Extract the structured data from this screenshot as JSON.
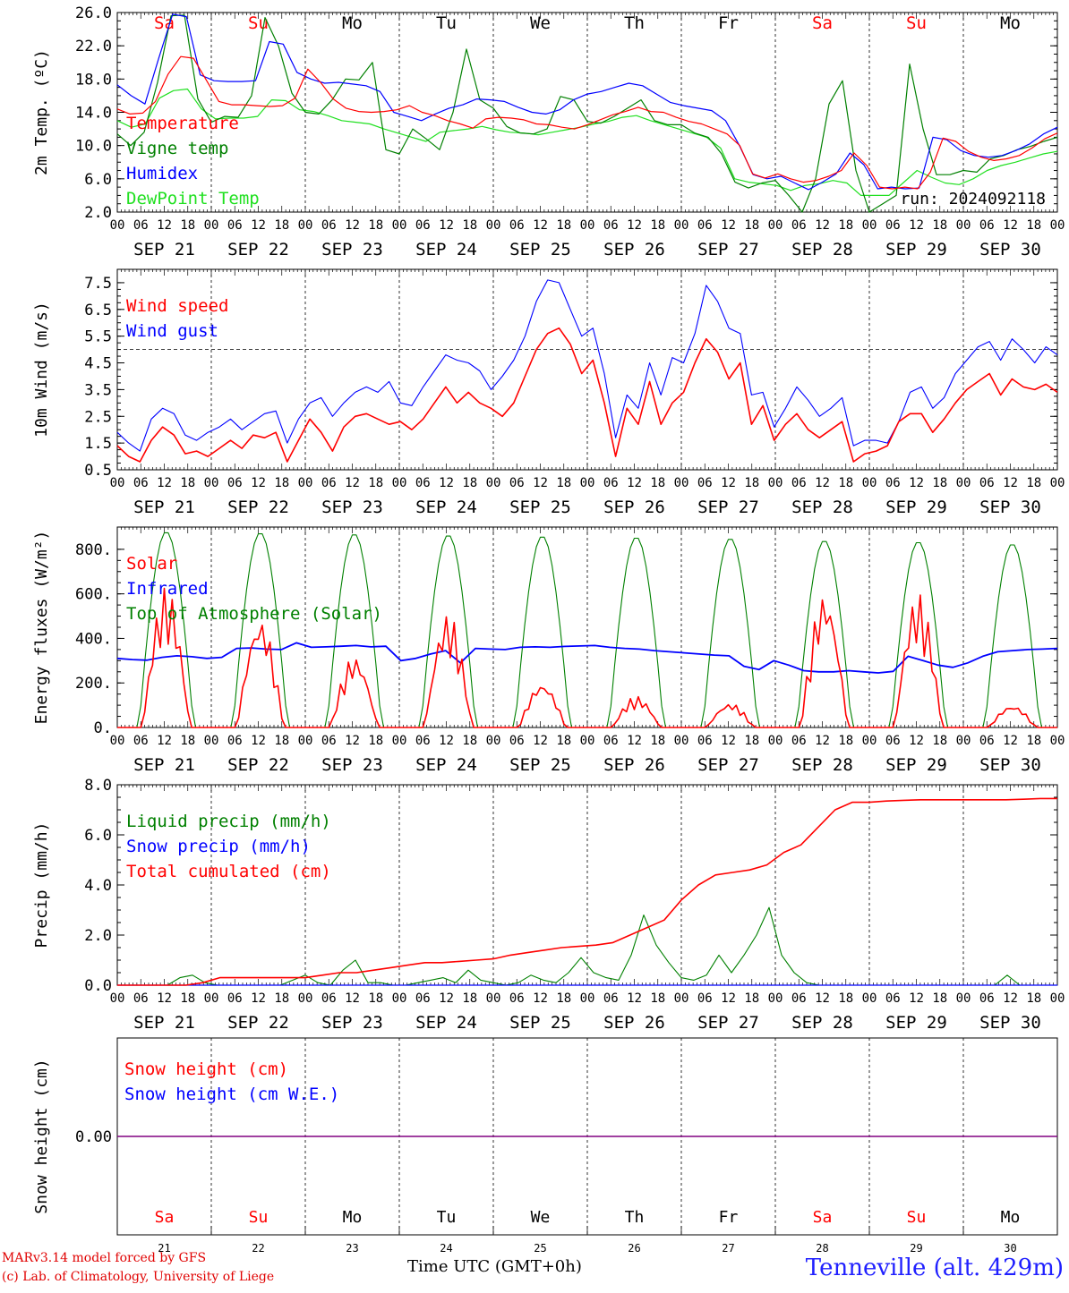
{
  "days": {
    "abbrev": [
      "Sa",
      "Su",
      "Mo",
      "Tu",
      "We",
      "Th",
      "Fr",
      "Sa",
      "Su",
      "Mo"
    ],
    "weekend": [
      true,
      true,
      false,
      false,
      false,
      false,
      false,
      true,
      true,
      false
    ],
    "dates": [
      "SEP 21",
      "SEP 22",
      "SEP 23",
      "SEP 24",
      "SEP 25",
      "SEP 26",
      "SEP 27",
      "SEP 28",
      "SEP 29",
      "SEP 30"
    ],
    "numbers": [
      "21",
      "22",
      "23",
      "24",
      "25",
      "26",
      "27",
      "28",
      "29",
      "30"
    ],
    "hour_labels": [
      "00",
      "06",
      "12",
      "18"
    ],
    "final_hour": "00"
  },
  "colors": {
    "red": "#ff0000",
    "green": "#008000",
    "blue": "#0000ff",
    "lightgreen": "#20e020",
    "purple": "#800080",
    "weekend": "#ff0000",
    "weekday": "#000000"
  },
  "chart_data": [
    {
      "id": "temperature",
      "type": "line",
      "ylabel": "2m Temp. (ºC)",
      "ylim": [
        2.0,
        26.0
      ],
      "yticks": [
        "2.0",
        "6.0",
        "10.0",
        "14.0",
        "18.0",
        "22.0",
        "26.0"
      ],
      "annotation": "run: 2024092118",
      "series": [
        {
          "name": "Temperature",
          "color": "#ff0000",
          "values": [
            14.4,
            13.8,
            13.9,
            15.3,
            18.6,
            20.7,
            20.5,
            17.9,
            15.3,
            14.9,
            14.9,
            14.8,
            14.7,
            14.8,
            15.7,
            19.2,
            17.6,
            15.6,
            14.5,
            14.1,
            14.0,
            14.1,
            14.3,
            14.8,
            14.0,
            13.6,
            13.0,
            12.6,
            12.1,
            13.2,
            13.4,
            13.3,
            13.1,
            12.6,
            12.5,
            12.2,
            12.0,
            12.5,
            13.1,
            13.7,
            14.1,
            14.6,
            14.1,
            14.0,
            13.4,
            12.9,
            12.6,
            12.0,
            11.4,
            10.0,
            6.6,
            6.1,
            6.6,
            6.0,
            5.6,
            5.8,
            6.3,
            7.0,
            9.1,
            7.6,
            5.0,
            4.8,
            5.0,
            4.8,
            6.8,
            10.9,
            10.5,
            9.3,
            8.6,
            8.2,
            8.4,
            8.8,
            9.7,
            10.8,
            11.5
          ]
        },
        {
          "name": "Vigne temp",
          "color": "#008000",
          "values": [
            11.4,
            10.0,
            11.6,
            17.6,
            25.6,
            25.7,
            15.6,
            12.8,
            13.5,
            13.4,
            16.0,
            25.4,
            22.0,
            16.3,
            14.0,
            13.8,
            15.5,
            18.0,
            17.9,
            20.0,
            9.5,
            9.0,
            12.0,
            10.8,
            9.5,
            14.0,
            21.6,
            15.5,
            14.5,
            12.3,
            11.5,
            11.4,
            12.0,
            15.9,
            15.5,
            12.9,
            12.7,
            13.5,
            14.5,
            15.5,
            13.0,
            12.5,
            12.5,
            11.5,
            11.0,
            9.0,
            5.6,
            4.9,
            5.5,
            5.8,
            4.0,
            2.0,
            6.0,
            15.0,
            17.8,
            7.0,
            2.0,
            3.0,
            4.0,
            19.8,
            12.0,
            6.5,
            6.5,
            7.0,
            6.8,
            8.4,
            8.8,
            9.5,
            9.9,
            10.5,
            11.0
          ]
        },
        {
          "name": "Humidex",
          "color": "#0000ff",
          "values": [
            17.3,
            16.0,
            15.0,
            20.5,
            25.8,
            25.5,
            18.5,
            17.8,
            17.7,
            17.7,
            17.8,
            22.5,
            22.2,
            18.8,
            18.0,
            17.5,
            17.6,
            17.4,
            17.2,
            16.5,
            14.0,
            13.5,
            13.0,
            13.8,
            14.5,
            14.9,
            15.6,
            15.5,
            15.3,
            14.6,
            14.0,
            13.8,
            14.3,
            15.5,
            16.2,
            16.5,
            17.0,
            17.5,
            17.2,
            16.2,
            15.2,
            14.8,
            14.5,
            14.2,
            13.0,
            10.0,
            6.5,
            6.0,
            6.3,
            5.5,
            4.7,
            5.6,
            6.6,
            9.1,
            7.7,
            4.8,
            5.0,
            4.8,
            4.9,
            11.0,
            10.7,
            9.4,
            8.8,
            8.6,
            8.8,
            9.4,
            10.2,
            11.4,
            12.2
          ]
        },
        {
          "name": "DewPoint Temp",
          "color": "#20e020",
          "values": [
            13.0,
            12.2,
            12.6,
            15.7,
            16.6,
            16.8,
            14.4,
            13.2,
            13.3,
            13.3,
            13.5,
            15.5,
            15.4,
            14.3,
            14.1,
            13.6,
            13.0,
            12.8,
            12.6,
            12.0,
            11.5,
            11.0,
            10.5,
            11.6,
            11.8,
            12.0,
            12.3,
            11.9,
            11.6,
            11.5,
            11.3,
            11.6,
            11.9,
            12.2,
            12.6,
            12.9,
            13.4,
            13.6,
            13.0,
            12.5,
            12.0,
            11.5,
            11.0,
            9.7,
            6.0,
            5.6,
            5.4,
            5.2,
            4.6,
            5.2,
            5.4,
            5.8,
            5.5,
            4.0,
            4.0,
            4.0,
            5.5,
            7.0,
            6.2,
            5.5,
            5.3,
            6.0,
            7.0,
            7.6,
            8.0,
            8.5,
            9.0,
            9.3
          ]
        }
      ]
    },
    {
      "id": "wind",
      "type": "line",
      "ylabel": "10m Wind (m/s)",
      "ylim": [
        0.5,
        8.0
      ],
      "yticks": [
        "0.5",
        "1.5",
        "2.5",
        "3.5",
        "4.5",
        "5.5",
        "6.5",
        "7.5"
      ],
      "reference_line": 5.0,
      "series": [
        {
          "name": "Wind speed",
          "color": "#ff0000",
          "values": [
            1.4,
            1.0,
            0.8,
            1.6,
            2.1,
            1.8,
            1.1,
            1.2,
            1.0,
            1.3,
            1.6,
            1.3,
            1.8,
            1.7,
            1.9,
            0.8,
            1.6,
            2.4,
            1.9,
            1.2,
            2.1,
            2.5,
            2.6,
            2.4,
            2.2,
            2.3,
            2.0,
            2.4,
            3.0,
            3.6,
            3.0,
            3.4,
            3.0,
            2.8,
            2.5,
            3.0,
            4.0,
            5.0,
            5.6,
            5.8,
            5.2,
            4.1,
            4.6,
            3.0,
            1.0,
            2.8,
            2.2,
            3.8,
            2.2,
            3.0,
            3.4,
            4.5,
            5.4,
            4.9,
            3.9,
            4.5,
            2.2,
            2.9,
            1.6,
            2.2,
            2.6,
            2.0,
            1.7,
            2.0,
            2.3,
            0.8,
            1.1,
            1.2,
            1.4,
            2.3,
            2.6,
            2.6,
            1.9,
            2.4,
            3.0,
            3.5,
            3.8,
            4.1,
            3.3,
            3.9,
            3.6,
            3.5,
            3.7,
            3.4
          ]
        },
        {
          "name": "Wind gust",
          "color": "#0000ff",
          "values": [
            1.9,
            1.5,
            1.2,
            2.4,
            2.8,
            2.6,
            1.8,
            1.6,
            1.9,
            2.1,
            2.4,
            2.0,
            2.3,
            2.6,
            2.7,
            1.5,
            2.4,
            3.0,
            3.2,
            2.5,
            3.0,
            3.4,
            3.6,
            3.4,
            3.8,
            3.0,
            2.9,
            3.6,
            4.2,
            4.8,
            4.6,
            4.5,
            4.2,
            3.5,
            4.0,
            4.6,
            5.5,
            6.8,
            7.6,
            7.5,
            6.5,
            5.5,
            5.8,
            4.1,
            1.7,
            3.3,
            2.8,
            4.5,
            3.3,
            4.7,
            4.5,
            5.6,
            7.4,
            6.8,
            5.8,
            5.6,
            3.3,
            3.4,
            2.1,
            2.8,
            3.6,
            3.1,
            2.5,
            2.8,
            3.2,
            1.4,
            1.6,
            1.6,
            1.5,
            2.3,
            3.4,
            3.6,
            2.8,
            3.2,
            4.1,
            4.6,
            5.1,
            5.3,
            4.6,
            5.4,
            5.0,
            4.5,
            5.1,
            4.8
          ]
        }
      ]
    },
    {
      "id": "energy",
      "type": "line",
      "ylabel": "Energy fluxes (W/m²)",
      "ylim": [
        0,
        900
      ],
      "yticks": [
        "0.",
        "200.",
        "400.",
        "600.",
        "800."
      ],
      "series": [
        {
          "name": "Solar",
          "color": "#ff0000",
          "daily_peaks_wm2": [
            630,
            490,
            320,
            510,
            200,
            140,
            110,
            600,
            600,
            100
          ]
        },
        {
          "name": "Infrared",
          "color": "#0000ff",
          "values": [
            310,
            305,
            302,
            315,
            322,
            318,
            310,
            315,
            355,
            357,
            352,
            350,
            380,
            360,
            362,
            365,
            368,
            362,
            365,
            300,
            310,
            330,
            345,
            290,
            355,
            352,
            350,
            360,
            362,
            360,
            364,
            366,
            368,
            360,
            355,
            352,
            345,
            340,
            335,
            330,
            325,
            322,
            275,
            260,
            300,
            280,
            255,
            250,
            250,
            255,
            250,
            245,
            252,
            320,
            300,
            280,
            270,
            290,
            320,
            340,
            345,
            350,
            352,
            355
          ]
        },
        {
          "name": "Top of Atmosphere (Solar)",
          "color": "#008000",
          "daily_peaks_wm2": [
            880,
            875,
            870,
            865,
            860,
            855,
            850,
            840,
            835,
            825
          ]
        }
      ]
    },
    {
      "id": "precip",
      "type": "line",
      "ylabel": "Precip (mm/h)",
      "ylim": [
        0,
        8.0
      ],
      "yticks": [
        "0.0",
        "2.0",
        "4.0",
        "6.0",
        "8.0"
      ],
      "series": [
        {
          "name": "Liquid precip (mm/h)",
          "color": "#008000",
          "values": [
            0,
            0,
            0,
            0,
            0,
            0.3,
            0.4,
            0.1,
            0,
            0,
            0,
            0,
            0,
            0,
            0.2,
            0.4,
            0.1,
            0,
            0.6,
            1.0,
            0.1,
            0.1,
            0,
            0,
            0.1,
            0.2,
            0.3,
            0.1,
            0.6,
            0.2,
            0.1,
            0,
            0.1,
            0.4,
            0.2,
            0.1,
            0.5,
            1.1,
            0.5,
            0.3,
            0.2,
            1.2,
            2.8,
            1.6,
            0.9,
            0.3,
            0.2,
            0.4,
            1.2,
            0.5,
            1.2,
            2.0,
            3.1,
            1.2,
            0.5,
            0.1,
            0,
            0,
            0,
            0,
            0,
            0,
            0,
            0,
            0,
            0,
            0,
            0,
            0,
            0,
            0,
            0.4,
            0,
            0,
            0,
            0
          ]
        },
        {
          "name": "Snow precip (mm/h)",
          "color": "#0000ff",
          "values": [
            0,
            0
          ]
        },
        {
          "name": "Total cumulated (cm)",
          "color": "#ff0000",
          "values": [
            0,
            0,
            0,
            0,
            0,
            0.1,
            0.3,
            0.3,
            0.3,
            0.3,
            0.3,
            0.3,
            0.4,
            0.5,
            0.5,
            0.6,
            0.7,
            0.8,
            0.9,
            0.9,
            0.95,
            1.0,
            1.05,
            1.2,
            1.3,
            1.4,
            1.5,
            1.55,
            1.6,
            1.7,
            2.0,
            2.3,
            2.6,
            3.4,
            4.0,
            4.4,
            4.5,
            4.6,
            4.8,
            5.3,
            5.6,
            6.3,
            7.0,
            7.3,
            7.3,
            7.35,
            7.38,
            7.4,
            7.4,
            7.4,
            7.4,
            7.4,
            7.4,
            7.42,
            7.45,
            7.45
          ]
        }
      ]
    },
    {
      "id": "snow",
      "type": "line",
      "ylabel": "Snow height (cm)",
      "ylim": [
        -1,
        1
      ],
      "yticks": [
        "0.00"
      ],
      "series": [
        {
          "name": "Snow height (cm)",
          "color": "#ff0000",
          "values": [
            0,
            0
          ]
        },
        {
          "name": "Snow height (cm W.E.)",
          "color": "#0000ff",
          "values": [
            0,
            0
          ]
        }
      ]
    }
  ],
  "footer": {
    "model_line": "MARv3.14 model forced by GFS",
    "lab_line": "(c) Lab. of Climatology, University of Liege",
    "time_label": "Time UTC (GMT+0h)",
    "station": "Tenneville (alt. 429m)"
  }
}
